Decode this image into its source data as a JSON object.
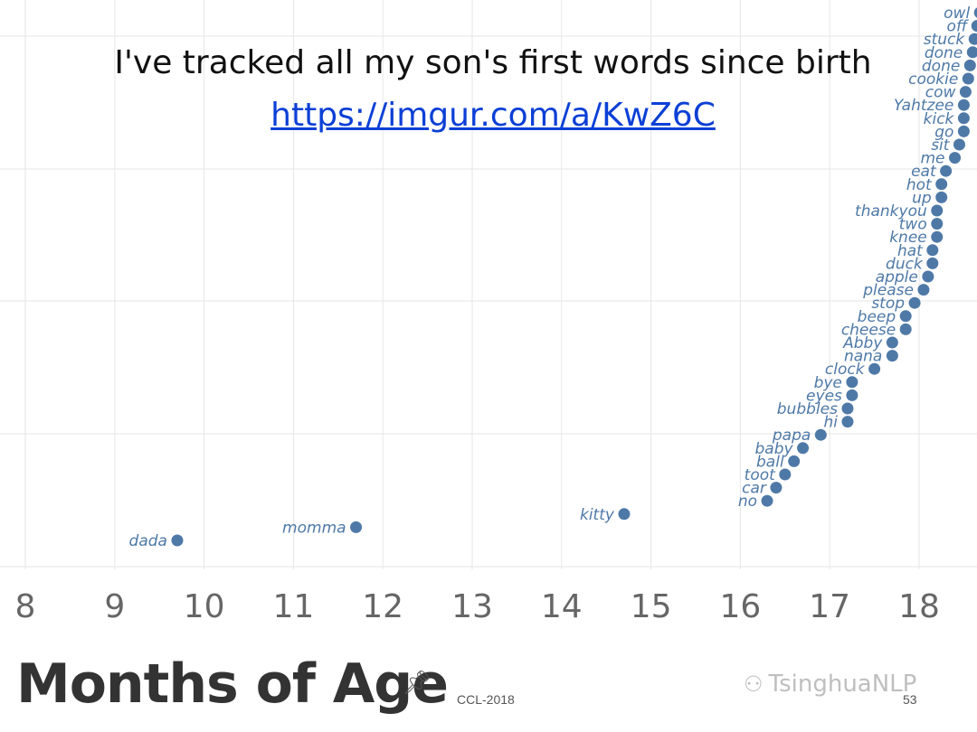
{
  "slide": {
    "title": "I've tracked all my son's first words since birth",
    "link": "https://imgur.com/a/KwZ6C",
    "footer": "CCL-2018",
    "page_number": "53",
    "watermark": "TsinghuaNLP",
    "icons": [
      "pin-icon",
      "wechat-icon"
    ]
  },
  "chart_data": {
    "type": "scatter",
    "xlabel": "Months of Age",
    "xlim": [
      7.8,
      18.6
    ],
    "x_ticks": [
      8,
      9,
      10,
      11,
      12,
      13,
      14,
      15,
      16,
      17,
      18
    ],
    "grid": true,
    "colors": {
      "point": "#4e79a7",
      "label": "#4e79a7",
      "grid": "#e6e6e6",
      "tick": "#666666"
    },
    "points": [
      {
        "word": "dada",
        "x": 9.7
      },
      {
        "word": "momma",
        "x": 11.7
      },
      {
        "word": "kitty",
        "x": 14.7
      },
      {
        "word": "no",
        "x": 16.3
      },
      {
        "word": "car",
        "x": 16.4
      },
      {
        "word": "toot",
        "x": 16.5
      },
      {
        "word": "ball",
        "x": 16.6
      },
      {
        "word": "baby",
        "x": 16.7
      },
      {
        "word": "papa",
        "x": 16.9
      },
      {
        "word": "hi",
        "x": 17.2
      },
      {
        "word": "bubbles",
        "x": 17.2
      },
      {
        "word": "eyes",
        "x": 17.25
      },
      {
        "word": "bye",
        "x": 17.25
      },
      {
        "word": "clock",
        "x": 17.5
      },
      {
        "word": "nana",
        "x": 17.7
      },
      {
        "word": "Abby",
        "x": 17.7
      },
      {
        "word": "cheese",
        "x": 17.85
      },
      {
        "word": "beep",
        "x": 17.85
      },
      {
        "word": "stop",
        "x": 17.95
      },
      {
        "word": "please",
        "x": 18.05
      },
      {
        "word": "apple",
        "x": 18.1
      },
      {
        "word": "duck",
        "x": 18.15
      },
      {
        "word": "hat",
        "x": 18.15
      },
      {
        "word": "knee",
        "x": 18.2
      },
      {
        "word": "two",
        "x": 18.2
      },
      {
        "word": "thankyou",
        "x": 18.2
      },
      {
        "word": "up",
        "x": 18.25
      },
      {
        "word": "hot",
        "x": 18.25
      },
      {
        "word": "eat",
        "x": 18.3
      },
      {
        "word": "me",
        "x": 18.4
      },
      {
        "word": "sit",
        "x": 18.45
      },
      {
        "word": "go",
        "x": 18.5
      },
      {
        "word": "kick",
        "x": 18.5
      },
      {
        "word": "Yahtzee",
        "x": 18.5
      },
      {
        "word": "cow",
        "x": 18.52
      },
      {
        "word": "cookie",
        "x": 18.55
      },
      {
        "word": "done",
        "x": 18.57
      },
      {
        "word": "done",
        "x": 18.6
      },
      {
        "word": "stuck",
        "x": 18.62
      },
      {
        "word": "off",
        "x": 18.65
      },
      {
        "word": "owl",
        "x": 18.68
      }
    ]
  }
}
